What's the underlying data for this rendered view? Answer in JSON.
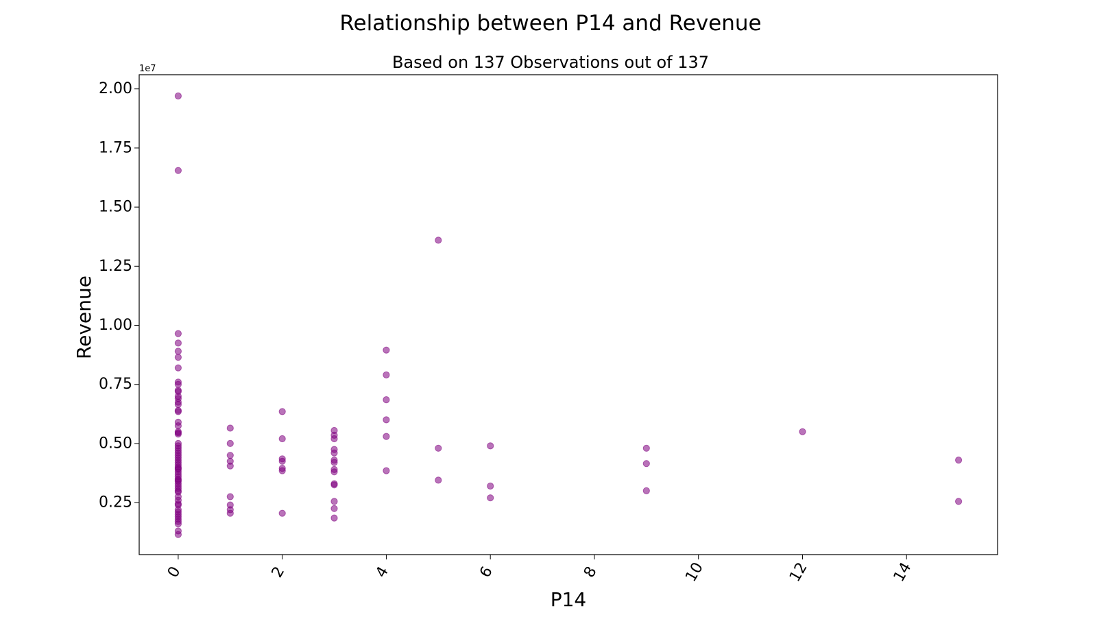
{
  "figure": {
    "suptitle": "Relationship between P14 and Revenue"
  },
  "chart_data": {
    "type": "scatter",
    "title": "Based on 137 Observations out of 137",
    "xlabel": "P14",
    "ylabel": "Revenue",
    "y_offset_label": "1e7",
    "xlim": [
      -0.75,
      15.75
    ],
    "ylim": [
      0.3,
      20.6
    ],
    "y_units": "1e6",
    "x_ticks": [
      {
        "value": 0,
        "label": "0"
      },
      {
        "value": 2,
        "label": "2"
      },
      {
        "value": 4,
        "label": "4"
      },
      {
        "value": 6,
        "label": "6"
      },
      {
        "value": 8,
        "label": "8"
      },
      {
        "value": 10,
        "label": "10"
      },
      {
        "value": 12,
        "label": "12"
      },
      {
        "value": 14,
        "label": "14"
      }
    ],
    "y_ticks": [
      {
        "value": 2.5,
        "label": "0.25"
      },
      {
        "value": 5.0,
        "label": "0.50"
      },
      {
        "value": 7.5,
        "label": "0.75"
      },
      {
        "value": 10.0,
        "label": "1.00"
      },
      {
        "value": 12.5,
        "label": "1.25"
      },
      {
        "value": 15.0,
        "label": "1.50"
      },
      {
        "value": 17.5,
        "label": "1.75"
      },
      {
        "value": 20.0,
        "label": "2.00"
      }
    ],
    "grid": false,
    "marker_color": "#800080",
    "marker_alpha": 0.55,
    "series": [
      {
        "points": [
          [
            0,
            19.7
          ],
          [
            0,
            16.55
          ],
          [
            0,
            9.65
          ],
          [
            0,
            9.25
          ],
          [
            0,
            8.9
          ],
          [
            0,
            8.65
          ],
          [
            0,
            8.2
          ],
          [
            0,
            7.6
          ],
          [
            0,
            7.5
          ],
          [
            0,
            7.25
          ],
          [
            0,
            7.2
          ],
          [
            0,
            7.0
          ],
          [
            0,
            6.9
          ],
          [
            0,
            6.75
          ],
          [
            0,
            6.65
          ],
          [
            0,
            6.4
          ],
          [
            0,
            6.35
          ],
          [
            0,
            5.9
          ],
          [
            0,
            5.75
          ],
          [
            0,
            5.5
          ],
          [
            0,
            5.45
          ],
          [
            0,
            5.4
          ],
          [
            0,
            5.0
          ],
          [
            0,
            4.9
          ],
          [
            0,
            4.8
          ],
          [
            0,
            4.7
          ],
          [
            0,
            4.6
          ],
          [
            0,
            4.5
          ],
          [
            0,
            4.4
          ],
          [
            0,
            4.3
          ],
          [
            0,
            4.2
          ],
          [
            0,
            4.1
          ],
          [
            0,
            4.0
          ],
          [
            0,
            3.95
          ],
          [
            0,
            3.9
          ],
          [
            0,
            3.8
          ],
          [
            0,
            3.7
          ],
          [
            0,
            3.6
          ],
          [
            0,
            3.5
          ],
          [
            0,
            3.45
          ],
          [
            0,
            3.4
          ],
          [
            0,
            3.3
          ],
          [
            0,
            3.2
          ],
          [
            0,
            3.1
          ],
          [
            0,
            3.0
          ],
          [
            0,
            2.95
          ],
          [
            0,
            2.75
          ],
          [
            0,
            2.6
          ],
          [
            0,
            2.45
          ],
          [
            0,
            2.4
          ],
          [
            0,
            2.2
          ],
          [
            0,
            2.1
          ],
          [
            0,
            2.0
          ],
          [
            0,
            1.9
          ],
          [
            0,
            1.8
          ],
          [
            0,
            1.7
          ],
          [
            0,
            1.6
          ],
          [
            0,
            1.3
          ],
          [
            0,
            1.15
          ],
          [
            1,
            5.65
          ],
          [
            1,
            5.0
          ],
          [
            1,
            4.5
          ],
          [
            1,
            4.25
          ],
          [
            1,
            4.05
          ],
          [
            1,
            2.75
          ],
          [
            1,
            2.4
          ],
          [
            1,
            2.2
          ],
          [
            1,
            2.05
          ],
          [
            2,
            6.35
          ],
          [
            2,
            5.2
          ],
          [
            2,
            4.35
          ],
          [
            2,
            4.25
          ],
          [
            2,
            3.95
          ],
          [
            2,
            3.85
          ],
          [
            2,
            2.05
          ],
          [
            3,
            5.55
          ],
          [
            3,
            5.35
          ],
          [
            3,
            5.2
          ],
          [
            3,
            4.75
          ],
          [
            3,
            4.6
          ],
          [
            3,
            4.3
          ],
          [
            3,
            4.2
          ],
          [
            3,
            3.9
          ],
          [
            3,
            3.8
          ],
          [
            3,
            3.3
          ],
          [
            3,
            3.25
          ],
          [
            3,
            2.55
          ],
          [
            3,
            2.25
          ],
          [
            3,
            1.85
          ],
          [
            4,
            8.95
          ],
          [
            4,
            7.9
          ],
          [
            4,
            6.85
          ],
          [
            4,
            6.0
          ],
          [
            4,
            5.3
          ],
          [
            4,
            3.85
          ],
          [
            5,
            13.6
          ],
          [
            5,
            4.8
          ],
          [
            5,
            3.45
          ],
          [
            6,
            4.9
          ],
          [
            6,
            3.2
          ],
          [
            6,
            2.7
          ],
          [
            9,
            4.8
          ],
          [
            9,
            4.15
          ],
          [
            9,
            3.0
          ],
          [
            12,
            5.5
          ],
          [
            15,
            4.3
          ],
          [
            15,
            2.55
          ]
        ]
      }
    ]
  }
}
